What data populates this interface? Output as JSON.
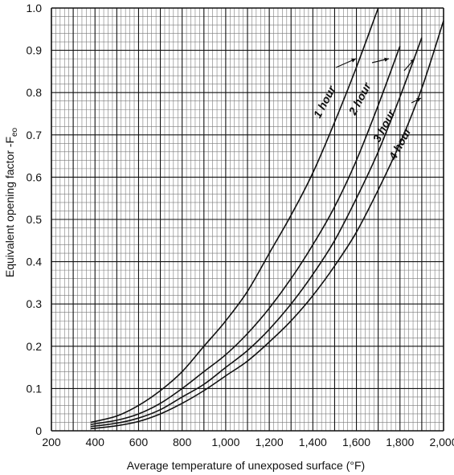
{
  "chart_data": {
    "type": "line",
    "xlabel": "Average temperature of unexposed surface (°F)",
    "ylabel": "Equivalent opening factor -F",
    "ylabel_sub": "eo",
    "xlim": [
      200,
      2000
    ],
    "ylim": [
      0,
      1.0
    ],
    "x_ticks": [
      200,
      400,
      600,
      800,
      1000,
      1200,
      1400,
      1600,
      1800,
      2000
    ],
    "x_tick_labels": [
      "200",
      "400",
      "600",
      "800",
      "1,000",
      "1,200",
      "1,400",
      "1,600",
      "1,800",
      "2,000"
    ],
    "y_ticks": [
      0,
      0.1,
      0.2,
      0.3,
      0.4,
      0.5,
      0.6,
      0.7,
      0.8,
      0.9,
      1.0
    ],
    "y_tick_labels": [
      "0",
      "0.1",
      "0.2",
      "0.3",
      "0.4",
      "0.5",
      "0.6",
      "0.7",
      "0.8",
      "0.9",
      "1.0"
    ],
    "grid": true,
    "series": [
      {
        "name": "1 hour",
        "x": [
          380,
          500,
          600,
          700,
          800,
          900,
          1000,
          1100,
          1200,
          1300,
          1400,
          1500,
          1600,
          1700
        ],
        "y": [
          0.02,
          0.035,
          0.06,
          0.095,
          0.14,
          0.2,
          0.26,
          0.33,
          0.42,
          0.51,
          0.61,
          0.73,
          0.86,
          1.0
        ]
      },
      {
        "name": "2 hour",
        "x": [
          380,
          500,
          600,
          700,
          800,
          900,
          1000,
          1100,
          1200,
          1300,
          1400,
          1500,
          1600,
          1700,
          1800
        ],
        "y": [
          0.015,
          0.025,
          0.04,
          0.065,
          0.1,
          0.14,
          0.18,
          0.23,
          0.29,
          0.36,
          0.44,
          0.53,
          0.64,
          0.77,
          0.91
        ]
      },
      {
        "name": "3 hour",
        "x": [
          380,
          500,
          600,
          700,
          800,
          900,
          1000,
          1100,
          1200,
          1300,
          1400,
          1500,
          1600,
          1700,
          1800,
          1900
        ],
        "y": [
          0.01,
          0.018,
          0.03,
          0.05,
          0.08,
          0.11,
          0.15,
          0.19,
          0.24,
          0.3,
          0.37,
          0.45,
          0.55,
          0.66,
          0.79,
          0.93
        ]
      },
      {
        "name": "4 hour",
        "x": [
          380,
          500,
          600,
          700,
          800,
          900,
          1000,
          1100,
          1200,
          1300,
          1400,
          1500,
          1600,
          1700,
          1800,
          1900,
          2000
        ],
        "y": [
          0.005,
          0.012,
          0.022,
          0.04,
          0.065,
          0.095,
          0.13,
          0.165,
          0.21,
          0.26,
          0.32,
          0.39,
          0.47,
          0.57,
          0.68,
          0.81,
          0.97
        ]
      }
    ],
    "annotations": [
      {
        "text": "1 hour",
        "series": "1 hour"
      },
      {
        "text": "2 hour",
        "series": "2 hour"
      },
      {
        "text": "3 hour",
        "series": "3 hour"
      },
      {
        "text": "4 hour",
        "series": "4 hour"
      }
    ]
  }
}
